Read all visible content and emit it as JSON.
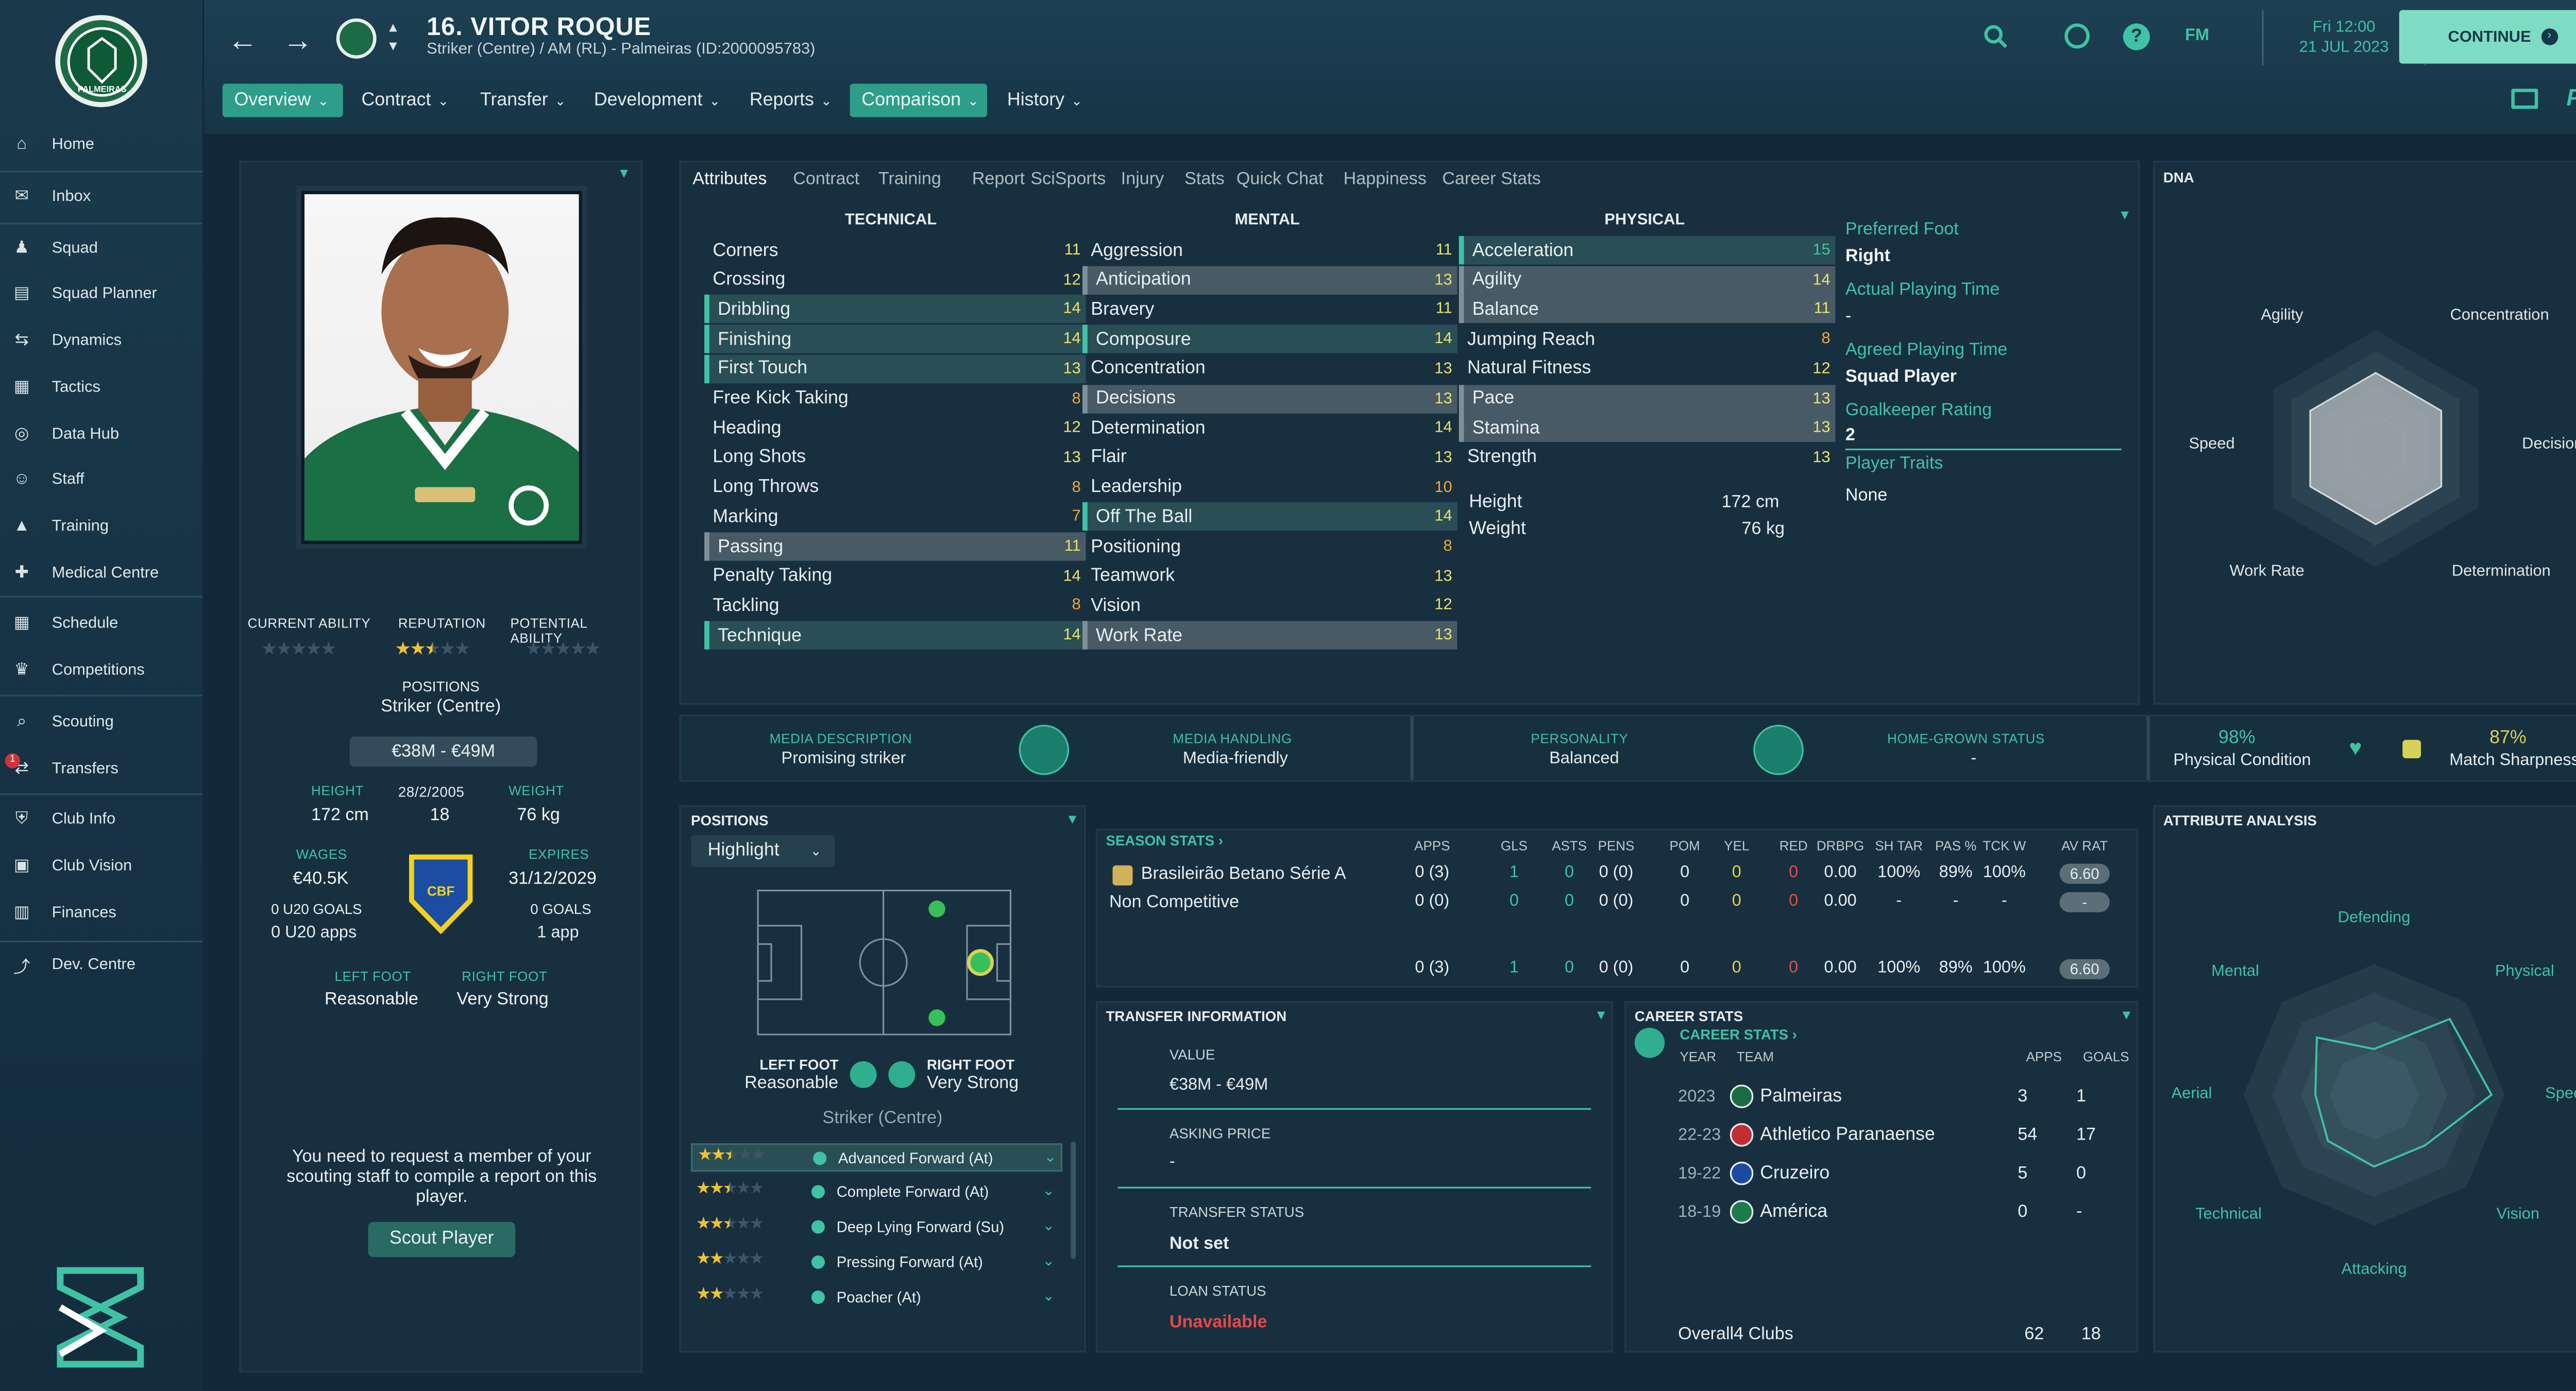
{
  "player": {
    "title": "16. VITOR ROQUE",
    "subtitle": "Striker (Centre) / AM (RL) - Palmeiras (ID:2000095783)"
  },
  "date": {
    "line1": "Fri 12:00",
    "line2": "21 JUL 2023"
  },
  "fm_label": "FM",
  "continue_label": "CONTINUE",
  "sidebar": {
    "items": [
      {
        "label": "Home",
        "icon": "home-icon"
      },
      {
        "label": "Inbox",
        "icon": "inbox-icon"
      },
      {
        "label": "Squad",
        "icon": "squad-icon"
      },
      {
        "label": "Squad Planner",
        "icon": "clipboard-icon"
      },
      {
        "label": "Dynamics",
        "icon": "dynamics-icon"
      },
      {
        "label": "Tactics",
        "icon": "tactics-icon"
      },
      {
        "label": "Data Hub",
        "icon": "data-hub-icon"
      },
      {
        "label": "Staff",
        "icon": "staff-icon"
      },
      {
        "label": "Training",
        "icon": "training-icon"
      },
      {
        "label": "Medical Centre",
        "icon": "medical-icon"
      },
      {
        "label": "Schedule",
        "icon": "calendar-icon"
      },
      {
        "label": "Competitions",
        "icon": "trophy-icon"
      },
      {
        "label": "Scouting",
        "icon": "search-icon"
      },
      {
        "label": "Transfers",
        "icon": "transfers-icon",
        "badge": "1"
      },
      {
        "label": "Club Info",
        "icon": "shield-icon"
      },
      {
        "label": "Club Vision",
        "icon": "briefcase-icon"
      },
      {
        "label": "Finances",
        "icon": "money-icon"
      },
      {
        "label": "Dev. Centre",
        "icon": "chart-icon"
      }
    ]
  },
  "menu": [
    "Overview",
    "Contract",
    "Transfer",
    "Development",
    "Reports",
    "Comparison",
    "History"
  ],
  "tabs": [
    "Attributes",
    "Contract",
    "Training",
    "Report",
    "SciSports",
    "Injury",
    "Stats",
    "Quick Chat",
    "Happiness",
    "Career Stats"
  ],
  "profile": {
    "current_ability_label": "CURRENT ABILITY",
    "reputation_label": "REPUTATION",
    "potential_ability_label": "POTENTIAL ABILITY",
    "reputation_stars": 2.5,
    "positions_label": "POSITIONS",
    "positions_value": "Striker (Centre)",
    "value_range": "€38M - €49M",
    "height_label": "HEIGHT",
    "height": "172 cm",
    "dob": "28/2/2005",
    "age": "18",
    "weight_label": "WEIGHT",
    "weight": "76 kg",
    "wages_label": "WAGES",
    "wages": "€40.5K",
    "expires_label": "EXPIRES",
    "expires": "31/12/2029",
    "u20_goals": "0 U20 GOALS",
    "u20_apps": "0 U20 apps",
    "goals": "0 GOALS",
    "apps": "1 app",
    "left_foot_label": "LEFT FOOT",
    "left_foot": "Reasonable",
    "right_foot_label": "RIGHT FOOT",
    "right_foot": "Very Strong",
    "scout_text": "You need to request a member of your scouting staff to compile a report on this player.",
    "scout_button": "Scout Player"
  },
  "attributes": {
    "technical_label": "TECHNICAL",
    "mental_label": "MENTAL",
    "physical_label": "PHYSICAL",
    "technical": [
      [
        "Corners",
        "11",
        ""
      ],
      [
        "Crossing",
        "12",
        ""
      ],
      [
        "Dribbling",
        "14",
        "teal"
      ],
      [
        "Finishing",
        "14",
        "teal"
      ],
      [
        "First Touch",
        "13",
        "teal"
      ],
      [
        "Free Kick Taking",
        "8",
        ""
      ],
      [
        "Heading",
        "12",
        ""
      ],
      [
        "Long Shots",
        "13",
        ""
      ],
      [
        "Long Throws",
        "8",
        ""
      ],
      [
        "Marking",
        "7",
        ""
      ],
      [
        "Passing",
        "11",
        "grey"
      ],
      [
        "Penalty Taking",
        "14",
        ""
      ],
      [
        "Tackling",
        "8",
        ""
      ],
      [
        "Technique",
        "14",
        "teal"
      ]
    ],
    "mental": [
      [
        "Aggression",
        "11",
        ""
      ],
      [
        "Anticipation",
        "13",
        "grey"
      ],
      [
        "Bravery",
        "11",
        ""
      ],
      [
        "Composure",
        "14",
        "teal"
      ],
      [
        "Concentration",
        "13",
        ""
      ],
      [
        "Decisions",
        "13",
        "grey"
      ],
      [
        "Determination",
        "14",
        ""
      ],
      [
        "Flair",
        "13",
        ""
      ],
      [
        "Leadership",
        "10",
        ""
      ],
      [
        "Off The Ball",
        "14",
        "teal"
      ],
      [
        "Positioning",
        "8",
        ""
      ],
      [
        "Teamwork",
        "13",
        ""
      ],
      [
        "Vision",
        "12",
        ""
      ],
      [
        "Work Rate",
        "13",
        "grey"
      ]
    ],
    "physical": [
      [
        "Acceleration",
        "15",
        "teal"
      ],
      [
        "Agility",
        "14",
        "grey"
      ],
      [
        "Balance",
        "11",
        "grey"
      ],
      [
        "Jumping Reach",
        "8",
        ""
      ],
      [
        "Natural Fitness",
        "12",
        ""
      ],
      [
        "Pace",
        "13",
        "grey"
      ],
      [
        "Stamina",
        "13",
        "grey"
      ],
      [
        "Strength",
        "13",
        ""
      ]
    ],
    "height_label": "Height",
    "height": "172 cm",
    "weight_label": "Weight",
    "weight": "76 kg"
  },
  "info": {
    "preferred_foot_label": "Preferred Foot",
    "preferred_foot": "Right",
    "actual_pt_label": "Actual Playing Time",
    "actual_pt": "-",
    "agreed_pt_label": "Agreed Playing Time",
    "agreed_pt": "Squad Player",
    "gk_rating_label": "Goalkeeper Rating",
    "gk_rating": "2",
    "traits_label": "Player Traits",
    "traits": "None"
  },
  "dna": {
    "title": "DNA",
    "labels": [
      "Concentration",
      "Decisions",
      "Determination",
      "Work Rate",
      "Speed",
      "Agility"
    ],
    "values": [
      0.78,
      0.78,
      0.78,
      0.78,
      0.78,
      0.78
    ]
  },
  "strip": {
    "media_desc_label": "MEDIA DESCRIPTION",
    "media_desc": "Promising striker",
    "media_handling_label": "MEDIA HANDLING",
    "media_handling": "Media-friendly",
    "personality_label": "PERSONALITY",
    "personality": "Balanced",
    "homegrown_label": "HOME-GROWN STATUS",
    "homegrown": "-",
    "condition": "98%",
    "condition_label": "Physical Condition",
    "sharpness": "87%",
    "sharpness_label": "Match Sharpness"
  },
  "positions_panel": {
    "title": "POSITIONS",
    "highlight": "Highlight",
    "left_foot_label": "LEFT FOOT",
    "left_foot": "Reasonable",
    "right_foot_label": "RIGHT FOOT",
    "right_foot": "Very Strong",
    "position": "Striker (Centre)",
    "roles": [
      {
        "name": "Advanced Forward (At)",
        "stars": 2.5
      },
      {
        "name": "Complete Forward (At)",
        "stars": 2.5
      },
      {
        "name": "Deep Lying Forward (Su)",
        "stars": 2.5
      },
      {
        "name": "Pressing Forward (At)",
        "stars": 2
      },
      {
        "name": "Poacher (At)",
        "stars": 2
      }
    ]
  },
  "season_stats": {
    "title": "SEASON STATS",
    "headers": [
      "APPS",
      "GLS",
      "ASTS",
      "PENS",
      "POM",
      "YEL",
      "RED",
      "DRBPG",
      "SH TAR",
      "PAS %",
      "TCK W",
      "AV RAT"
    ],
    "rows": [
      {
        "comp": "Brasileirão Betano Série A",
        "vals": [
          "0 (3)",
          "1",
          "0",
          "0 (0)",
          "0",
          "0",
          "0",
          "0.00",
          "100%",
          "89%",
          "100%",
          "6.60"
        ]
      },
      {
        "comp": "Non Competitive",
        "vals": [
          "0 (0)",
          "0",
          "0",
          "0 (0)",
          "0",
          "0",
          "0",
          "0.00",
          "-",
          "-",
          "-",
          "-"
        ]
      }
    ],
    "total": [
      "0 (3)",
      "1",
      "0",
      "0 (0)",
      "0",
      "0",
      "0",
      "0.00",
      "100%",
      "89%",
      "100%",
      "6.60"
    ]
  },
  "transfer": {
    "title": "TRANSFER INFORMATION",
    "value_label": "VALUE",
    "value": "€38M - €49M",
    "asking_label": "ASKING PRICE",
    "asking": "-",
    "status_label": "TRANSFER STATUS",
    "status": "Not set",
    "loan_label": "LOAN STATUS",
    "loan": "Unavailable"
  },
  "career": {
    "title": "CAREER STATS",
    "link": "CAREER STATS",
    "year_h": "YEAR",
    "team_h": "TEAM",
    "apps_h": "APPS",
    "goals_h": "GOALS",
    "rows": [
      [
        "2023",
        "Palmeiras",
        "3",
        "1"
      ],
      [
        "22-23",
        "Athletico Paranaense",
        "54",
        "17"
      ],
      [
        "19-22",
        "Cruzeiro",
        "5",
        "0"
      ],
      [
        "18-19",
        "América",
        "0",
        "-"
      ]
    ],
    "overall_label": "Overall",
    "overall_clubs": "4 Clubs",
    "overall_apps": "62",
    "overall_goals": "18"
  },
  "attr_analysis": {
    "title": "ATTRIBUTE ANALYSIS",
    "labels": [
      "Defending",
      "Physical",
      "Speed",
      "Vision",
      "Attacking",
      "Technical",
      "Aerial",
      "Mental"
    ],
    "values": [
      0.35,
      0.82,
      0.9,
      0.55,
      0.55,
      0.5,
      0.45,
      0.62
    ]
  },
  "colors": {
    "accent": "#3fc2a5",
    "bg": "#13293a",
    "panel": "#182f40",
    "continue": "#7fdcc4"
  }
}
